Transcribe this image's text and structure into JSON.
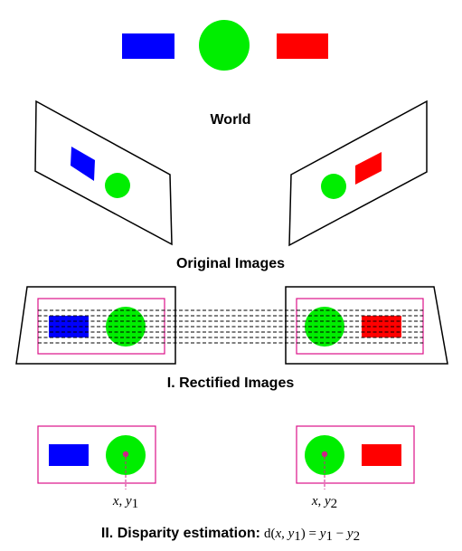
{
  "labels": {
    "world": "World",
    "original_images": "Original Images",
    "rectified_images": "I. Rectified Images",
    "disparity_prefix": "II. Disparity estimation:",
    "disparity_formula": {
      "d": "d",
      "open": "(",
      "x": "x",
      "comma": ", ",
      "y": "y",
      "sub1": "1",
      "close": ")",
      "eq": " = ",
      "y_a": "y",
      "sub_a": "1",
      "minus": " − ",
      "y_b": "y",
      "sub_b": "2"
    },
    "point_left": {
      "x": "x",
      "comma": ", ",
      "y": "y",
      "sub": "1"
    },
    "point_right": {
      "x": "x",
      "comma": ", ",
      "y": "y",
      "sub": "2"
    }
  },
  "colors": {
    "blue": "#0000ff",
    "green": "#00ee00",
    "red": "#ff0000",
    "frame": "#000000",
    "rectified_frame": "#dd1188",
    "point_marker": "#cc2288"
  }
}
